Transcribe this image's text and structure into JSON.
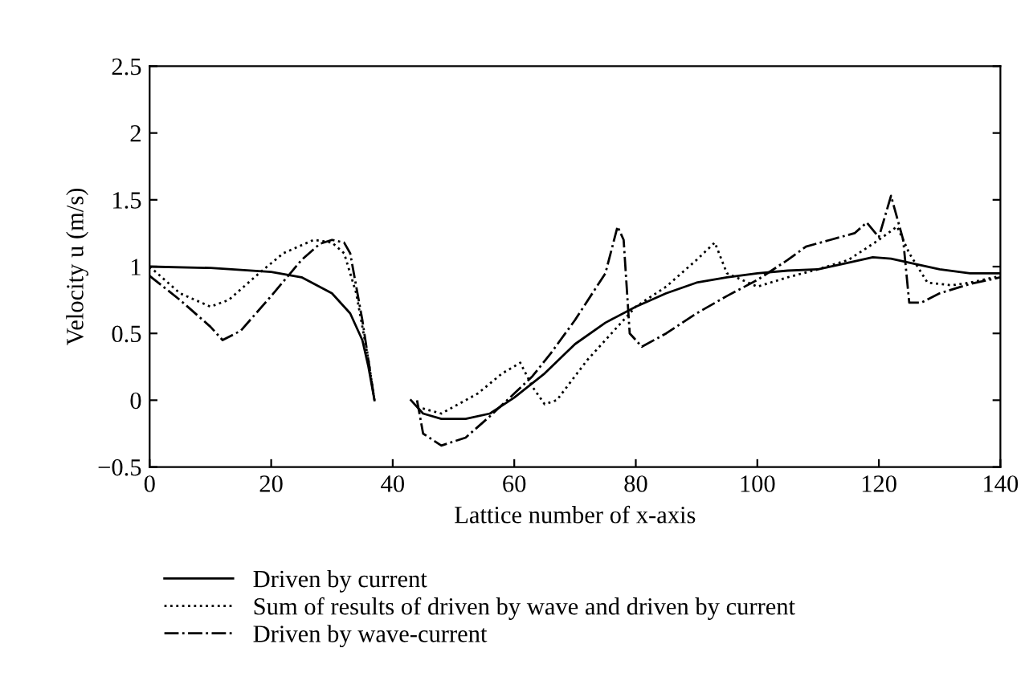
{
  "chart_data": {
    "type": "line",
    "xlabel": "Lattice number of x-axis",
    "ylabel": "Velocity u (m/s)",
    "xlim": [
      0,
      140
    ],
    "xticks": [
      0,
      20,
      40,
      60,
      80,
      100,
      120,
      140
    ],
    "ylim": [
      -0.5,
      2.5
    ],
    "yticks": [
      {
        "value": -0.5,
        "label": "−0.5"
      },
      0,
      0.5,
      1,
      1.5,
      2,
      2.5
    ],
    "grid": false,
    "legend": "bottom",
    "series": [
      {
        "name": "Driven by current",
        "color": "#000000",
        "line_style": "solid",
        "x": [
          0,
          10,
          20,
          25,
          30,
          33,
          35,
          36,
          37,
          40,
          43,
          45,
          48,
          52,
          56,
          60,
          65,
          70,
          75,
          80,
          85,
          90,
          95,
          100,
          105,
          110,
          115,
          119,
          122,
          125,
          130,
          135,
          140
        ],
        "values": [
          1,
          0.99,
          0.96,
          0.92,
          0.8,
          0.65,
          0.45,
          0.25,
          0,
          null,
          0,
          -0.1,
          -0.14,
          -0.14,
          -0.1,
          0.02,
          0.2,
          0.42,
          0.58,
          0.7,
          0.8,
          0.88,
          0.92,
          0.95,
          0.97,
          0.98,
          1.03,
          1.07,
          1.06,
          1.03,
          0.98,
          0.95,
          0.95
        ]
      },
      {
        "name": "Sum of results of driven by wave and driven by current",
        "color": "#000000",
        "line_style": "dotted",
        "x": [
          0,
          5,
          10,
          13,
          18,
          22,
          27,
          30,
          32,
          34,
          36,
          37,
          40,
          44,
          48,
          54,
          58,
          61,
          63,
          65,
          67,
          72,
          77,
          80,
          85,
          90,
          93,
          95,
          100,
          105,
          110,
          115,
          120,
          123,
          125,
          128,
          132,
          135,
          140
        ],
        "values": [
          1,
          0.8,
          0.7,
          0.75,
          0.95,
          1.1,
          1.2,
          1.18,
          1.1,
          0.8,
          0.3,
          0,
          null,
          -0.05,
          -0.1,
          0.05,
          0.2,
          0.28,
          0.1,
          -0.03,
          0,
          0.3,
          0.55,
          0.7,
          0.85,
          1.05,
          1.18,
          0.95,
          0.85,
          0.92,
          0.98,
          1.05,
          1.2,
          1.3,
          1.1,
          0.88,
          0.86,
          0.88,
          0.93
        ]
      },
      {
        "name": "Driven by wave-current",
        "color": "#000000",
        "line_style": "dashdot",
        "x": [
          0,
          5,
          10,
          12,
          15,
          20,
          25,
          28,
          30,
          32,
          33,
          35,
          37,
          40,
          44,
          45,
          48,
          52,
          56,
          60,
          63,
          66,
          70,
          75,
          77,
          78,
          79,
          81,
          85,
          90,
          95,
          100,
          105,
          108,
          112,
          116,
          118,
          120,
          122,
          124,
          125,
          127,
          130,
          135,
          140
        ],
        "values": [
          0.93,
          0.75,
          0.55,
          0.45,
          0.52,
          0.78,
          1.05,
          1.17,
          1.2,
          1.18,
          1.1,
          0.6,
          0,
          null,
          0,
          -0.25,
          -0.34,
          -0.28,
          -0.12,
          0.05,
          0.18,
          0.35,
          0.6,
          0.95,
          1.3,
          1.2,
          0.5,
          0.4,
          0.5,
          0.65,
          0.78,
          0.9,
          1.05,
          1.15,
          1.2,
          1.25,
          1.33,
          1.22,
          1.53,
          1.2,
          0.73,
          0.73,
          0.8,
          0.87,
          0.92
        ]
      }
    ]
  }
}
